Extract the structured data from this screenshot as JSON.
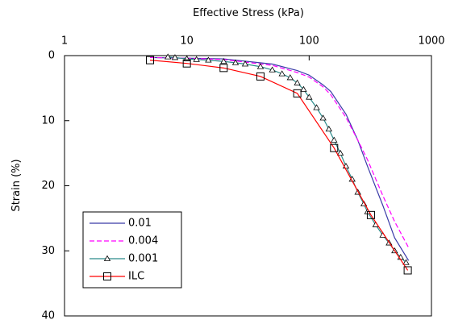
{
  "chart_data": {
    "type": "line",
    "x_label": "Effective Stress (kPa)",
    "y_label": "Strain (%)",
    "x_scale": "log",
    "x_axis_position": "top",
    "y_inverted": true,
    "xlim": [
      1,
      1000
    ],
    "xticks": [
      1,
      10,
      100,
      1000
    ],
    "ylim": [
      0,
      40
    ],
    "yticks": [
      0,
      10,
      20,
      30,
      40
    ],
    "legend": "lower left",
    "series": [
      {
        "name": "0.01",
        "color": "#3a3aa8",
        "dash": "solid",
        "marker": "none",
        "x": [
          5,
          10,
          20,
          50,
          80,
          100,
          130,
          150,
          200,
          250,
          300,
          400,
          500,
          650
        ],
        "values": [
          0.3,
          0.4,
          0.5,
          1.3,
          2.3,
          3.0,
          4.5,
          5.5,
          9,
          13,
          17,
          23,
          28,
          31.5
        ]
      },
      {
        "name": "0.004",
        "color": "#ff00ff",
        "dash": "dashed",
        "marker": "none",
        "x": [
          5,
          10,
          20,
          50,
          80,
          100,
          130,
          150,
          200,
          250,
          300,
          400,
          500,
          650
        ],
        "values": [
          0.3,
          0.4,
          0.6,
          1.5,
          2.6,
          3.3,
          4.8,
          6,
          9.5,
          13,
          16,
          21.5,
          25.5,
          29.5
        ]
      },
      {
        "name": "0.001",
        "color": "#2a8a8a",
        "dash": "solid",
        "marker": "triangle",
        "x": [
          7,
          8,
          10,
          12,
          15,
          20,
          25,
          30,
          40,
          50,
          60,
          70,
          80,
          90,
          100,
          115,
          130,
          145,
          160,
          180,
          200,
          225,
          250,
          280,
          300,
          350,
          400,
          450,
          500,
          560,
          620
        ],
        "values": [
          0.2,
          0.3,
          0.5,
          0.6,
          0.7,
          0.9,
          1.1,
          1.3,
          1.7,
          2.2,
          2.8,
          3.4,
          4.2,
          5.2,
          6.4,
          8,
          9.6,
          11.3,
          13,
          15,
          17,
          19,
          21,
          22.8,
          24,
          26,
          27.6,
          28.8,
          30,
          31,
          31.8
        ]
      },
      {
        "name": "ILC",
        "color": "#ff0000",
        "dash": "solid",
        "marker": "square",
        "x": [
          5,
          10,
          20,
          40,
          80,
          160,
          320,
          640
        ],
        "values": [
          0.7,
          1.2,
          1.9,
          3.2,
          5.8,
          14.2,
          24.5,
          33
        ]
      }
    ]
  }
}
